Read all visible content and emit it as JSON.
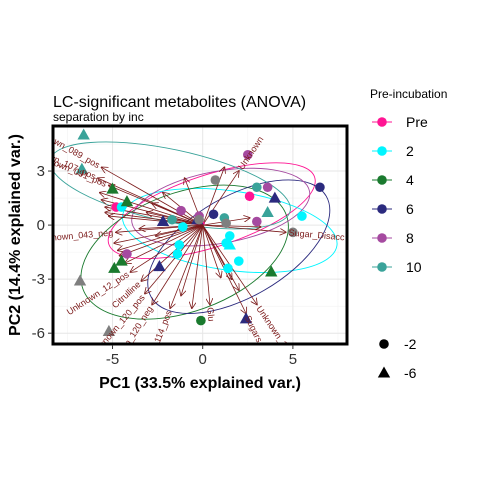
{
  "chart_data": {
    "type": "scatter",
    "title": "LC-significant metabolites (ANOVA)",
    "subtitle": "separation by inc",
    "xlabel": "PC1 (33.5% explained var.)",
    "ylabel": "PC2 (14.4% explained var.)",
    "xlim": [
      -8.3,
      8.0
    ],
    "ylim": [
      -6.6,
      5.5
    ],
    "xticks": [
      -5,
      0,
      5
    ],
    "yticks": [
      -6,
      -3,
      0,
      3
    ],
    "grid": true,
    "legend_position": "right",
    "color_legend": {
      "title": "Pre-incubation",
      "entries": [
        {
          "label": "Pre",
          "color": "#ff1493"
        },
        {
          "label": "2",
          "color": "#00f5ff"
        },
        {
          "label": "4",
          "color": "#1a7a2e"
        },
        {
          "label": "6",
          "color": "#2b2a7e"
        },
        {
          "label": "8",
          "color": "#a54aa0"
        },
        {
          "label": "10",
          "color": "#3aa39a"
        }
      ]
    },
    "shape_legend": {
      "title": "",
      "entries": [
        {
          "label": "-2",
          "shape": "circle"
        },
        {
          "label": "-6",
          "shape": "triangle"
        }
      ]
    },
    "series": [
      {
        "group": "Pre",
        "color": "#ff1493",
        "points": [
          {
            "x": -0.2,
            "y": 0.3,
            "shape": "triangle"
          },
          {
            "x": -4.8,
            "y": 1.0,
            "shape": "circle"
          },
          {
            "x": 2.6,
            "y": 1.6,
            "shape": "circle"
          }
        ]
      },
      {
        "group": "2",
        "color": "#00f5ff",
        "points": [
          {
            "x": 5.5,
            "y": 0.5,
            "shape": "circle"
          },
          {
            "x": 1.5,
            "y": -0.6,
            "shape": "circle"
          },
          {
            "x": 1.3,
            "y": -1.0,
            "shape": "circle"
          },
          {
            "x": -1.3,
            "y": -1.1,
            "shape": "circle"
          },
          {
            "x": -1.1,
            "y": -0.1,
            "shape": "circle"
          },
          {
            "x": -1.4,
            "y": -1.6,
            "shape": "circle"
          },
          {
            "x": 1.5,
            "y": -1.1,
            "shape": "triangle"
          },
          {
            "x": 2.0,
            "y": -2.0,
            "shape": "circle"
          },
          {
            "x": -4.5,
            "y": 1.0,
            "shape": "circle"
          },
          {
            "x": 1.4,
            "y": -2.4,
            "shape": "circle"
          }
        ]
      },
      {
        "group": "4",
        "color": "#1a7a2e",
        "points": [
          {
            "x": -4.2,
            "y": 1.3,
            "shape": "triangle"
          },
          {
            "x": -5.0,
            "y": 2.0,
            "shape": "triangle"
          },
          {
            "x": -4.5,
            "y": -2.0,
            "shape": "triangle"
          },
          {
            "x": -4.9,
            "y": -2.4,
            "shape": "triangle"
          },
          {
            "x": 3.8,
            "y": -2.6,
            "shape": "triangle"
          },
          {
            "x": -0.1,
            "y": -5.3,
            "shape": "circle"
          }
        ]
      },
      {
        "group": "6",
        "color": "#2b2a7e",
        "points": [
          {
            "x": 6.5,
            "y": 2.1,
            "shape": "circle"
          },
          {
            "x": -2.2,
            "y": 0.2,
            "shape": "triangle"
          },
          {
            "x": 0.6,
            "y": 0.6,
            "shape": "circle"
          },
          {
            "x": -0.3,
            "y": 0.3,
            "shape": "triangle"
          },
          {
            "x": -2.4,
            "y": -2.3,
            "shape": "triangle"
          },
          {
            "x": 4.0,
            "y": 1.5,
            "shape": "triangle"
          },
          {
            "x": 2.4,
            "y": -5.2,
            "shape": "triangle"
          }
        ]
      },
      {
        "group": "8",
        "color": "#a54aa0",
        "points": [
          {
            "x": 2.5,
            "y": 3.9,
            "shape": "circle"
          },
          {
            "x": 3.6,
            "y": 2.1,
            "shape": "circle"
          },
          {
            "x": -1.2,
            "y": 0.8,
            "shape": "circle"
          },
          {
            "x": 3.0,
            "y": 0.2,
            "shape": "circle"
          },
          {
            "x": -0.2,
            "y": 0.5,
            "shape": "circle"
          },
          {
            "x": -4.2,
            "y": -1.6,
            "shape": "circle"
          }
        ]
      },
      {
        "group": "10",
        "color": "#3aa39a",
        "points": [
          {
            "x": -6.6,
            "y": 5.0,
            "shape": "triangle"
          },
          {
            "x": -6.7,
            "y": 3.1,
            "shape": "triangle"
          },
          {
            "x": 3.0,
            "y": 2.1,
            "shape": "circle"
          },
          {
            "x": 3.6,
            "y": 0.7,
            "shape": "triangle"
          },
          {
            "x": 1.2,
            "y": 0.4,
            "shape": "circle"
          },
          {
            "x": -1.7,
            "y": 0.3,
            "shape": "circle"
          }
        ]
      },
      {
        "group": "",
        "color": "#7f7f7f",
        "points": [
          {
            "x": -6.8,
            "y": -3.1,
            "shape": "triangle"
          },
          {
            "x": -5.2,
            "y": -5.9,
            "shape": "triangle"
          },
          {
            "x": 1.3,
            "y": 0.1,
            "shape": "circle"
          },
          {
            "x": 0.7,
            "y": 2.5,
            "shape": "circle"
          },
          {
            "x": -0.2,
            "y": 0.3,
            "shape": "circle"
          },
          {
            "x": 5.0,
            "y": -0.4,
            "shape": "circle"
          }
        ]
      }
    ],
    "ellipses": [
      {
        "group": "Pre",
        "cx": 0.5,
        "cy": 0.8,
        "rx": 6.0,
        "ry": 2.0,
        "angle": 18
      },
      {
        "group": "2",
        "cx": 1.5,
        "cy": -0.3,
        "rx": 6.0,
        "ry": 2.2,
        "angle": -8
      },
      {
        "group": "4",
        "cx": -1.0,
        "cy": -1.5,
        "rx": 6.0,
        "ry": 3.3,
        "angle": 20
      },
      {
        "group": "6",
        "cx": 2.0,
        "cy": -1.2,
        "rx": 5.6,
        "ry": 2.8,
        "angle": 30
      },
      {
        "group": "8",
        "cx": 1.0,
        "cy": 1.0,
        "rx": 5.0,
        "ry": 2.0,
        "angle": 10
      },
      {
        "group": "10",
        "cx": -1.8,
        "cy": 2.2,
        "rx": 6.8,
        "ry": 2.0,
        "angle": -12
      }
    ],
    "loadings_color": "#7b1a1a",
    "loadings": [
      {
        "label": "Unknown_107_pos",
        "x": -5.8,
        "y": 2.6
      },
      {
        "label": "Unknown_089_pos",
        "x": -5.6,
        "y": 3.2
      },
      {
        "label": "Unknown_091_pos",
        "x": -5.2,
        "y": 2.2
      },
      {
        "label": "",
        "x": -5.7,
        "y": 1.8
      },
      {
        "label": "",
        "x": -5.6,
        "y": 1.4
      },
      {
        "label": "",
        "x": -5.4,
        "y": 1.0
      },
      {
        "label": "",
        "x": -5.4,
        "y": 0.7
      },
      {
        "label": "",
        "x": -5.2,
        "y": 0.5
      },
      {
        "label": "Unknown_043_neg",
        "x": -4.8,
        "y": -0.4
      },
      {
        "label": "",
        "x": -4.9,
        "y": -1.0
      },
      {
        "label": "",
        "x": -4.7,
        "y": -1.4
      },
      {
        "label": "",
        "x": -4.6,
        "y": -1.7
      },
      {
        "label": "",
        "x": -4.3,
        "y": -2.1
      },
      {
        "label": "Unknown_12_pos",
        "x": -4.0,
        "y": -2.6
      },
      {
        "label": "Citrulline",
        "x": -3.4,
        "y": -3.1
      },
      {
        "label": "Unknown_120_pos",
        "x": -3.2,
        "y": -3.8
      },
      {
        "label": "Unknown_120_neg",
        "x": -2.8,
        "y": -4.4
      },
      {
        "label": "Unknown_114_pos",
        "x": -1.8,
        "y": -4.6
      },
      {
        "label": "",
        "x": -0.6,
        "y": -4.6
      },
      {
        "label": "Glu",
        "x": 0.4,
        "y": -4.4
      },
      {
        "label": "Unknown_119_pos",
        "x": 3.0,
        "y": -4.4
      },
      {
        "label": "Sugars",
        "x": 2.4,
        "y": -4.9
      },
      {
        "label": "",
        "x": 2.0,
        "y": -3.6
      },
      {
        "label": "",
        "x": 1.6,
        "y": -3.0
      },
      {
        "label": "",
        "x": 1.0,
        "y": -2.9
      },
      {
        "label": "Sugar_Disacc",
        "x": 4.6,
        "y": -0.4
      },
      {
        "label": "",
        "x": 3.2,
        "y": -0.1
      },
      {
        "label": "",
        "x": 2.6,
        "y": 0.4
      },
      {
        "label": "Unknown",
        "x": 2.0,
        "y": 3.0
      },
      {
        "label": "",
        "x": 1.2,
        "y": 3.2
      },
      {
        "label": "",
        "x": -1.0,
        "y": 2.6
      },
      {
        "label": "",
        "x": -2.2,
        "y": 1.8
      },
      {
        "label": "",
        "x": -2.8,
        "y": 1.2
      },
      {
        "label": "",
        "x": -3.1,
        "y": 0.7
      },
      {
        "label": "",
        "x": -2.6,
        "y": -0.6
      },
      {
        "label": "",
        "x": -3.5,
        "y": -0.2
      },
      {
        "label": "",
        "x": -1.2,
        "y": -3.9
      }
    ]
  }
}
